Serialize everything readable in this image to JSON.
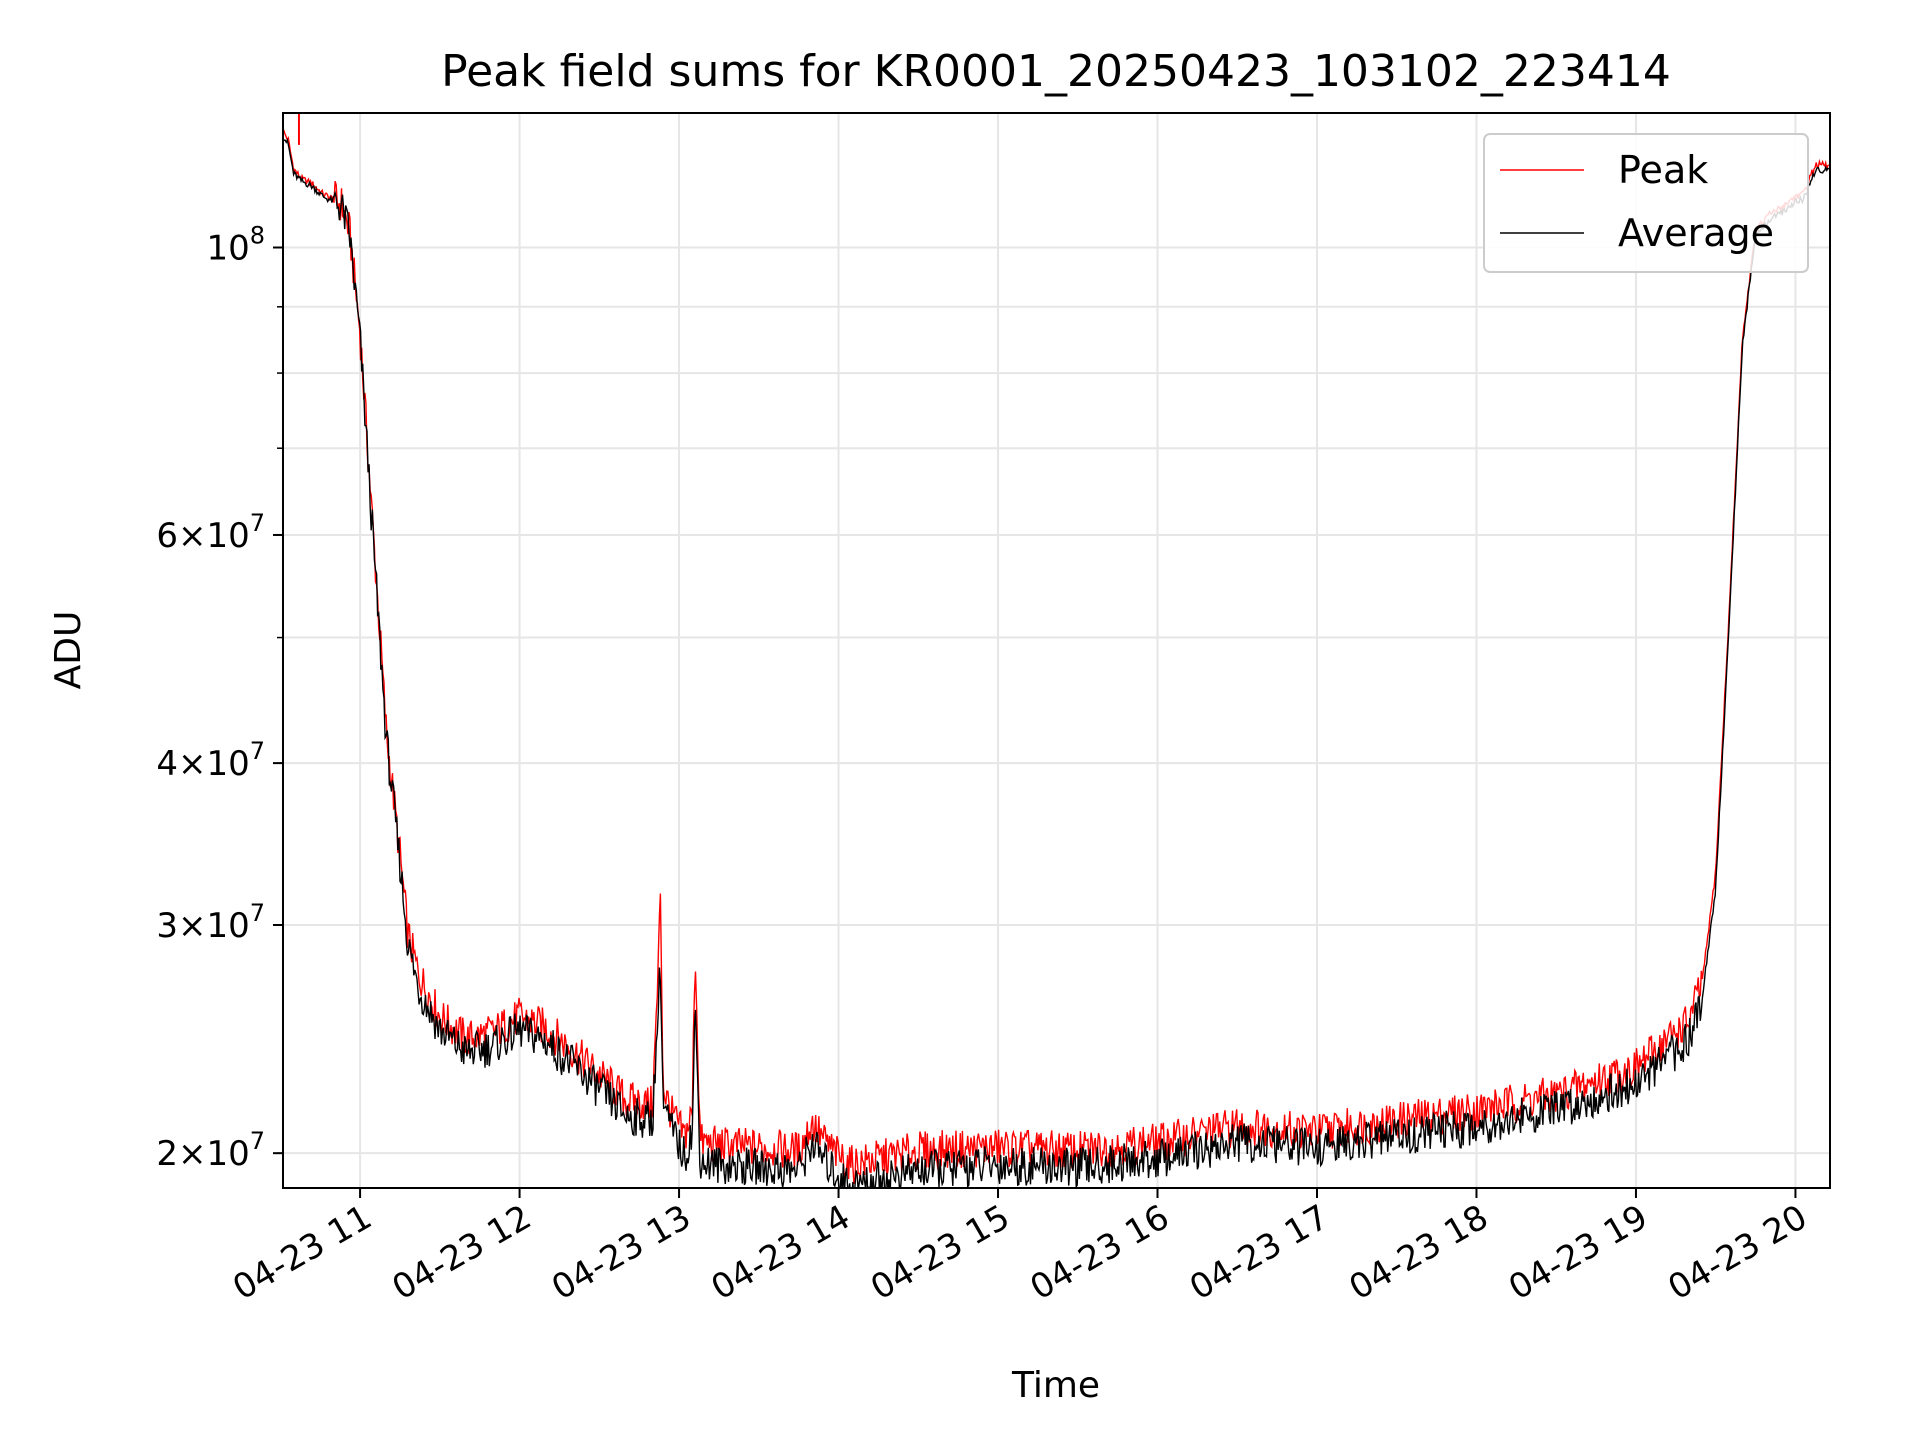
{
  "chart_data": {
    "type": "line",
    "title": "Peak field sums for KR0001_20250423_103102_223414",
    "xlabel": "Time",
    "ylabel": "ADU",
    "y_scale": "log",
    "ylim": [
      18800000,
      127000000
    ],
    "xlim": [
      "04-23 10:31",
      "04-23 20:13"
    ],
    "grid": true,
    "legend_position": "top-right",
    "x_ticks": [
      "04-23 11",
      "04-23 12",
      "04-23 13",
      "04-23 14",
      "04-23 15",
      "04-23 16",
      "04-23 17",
      "04-23 18",
      "04-23 19",
      "04-23 20"
    ],
    "y_ticks": [
      {
        "value": 20000000,
        "mantissa": "2",
        "exp": "7"
      },
      {
        "value": 30000000,
        "mantissa": "3",
        "exp": "7"
      },
      {
        "value": 40000000,
        "mantissa": "4",
        "exp": "7"
      },
      {
        "value": 60000000,
        "mantissa": "6",
        "exp": "7"
      },
      {
        "value": 100000000,
        "mantissa": "",
        "exp": "8"
      }
    ],
    "series": [
      {
        "name": "Peak",
        "color": "#ff0000",
        "x": [
          "04-23 10:31",
          "04-23 10:33",
          "04-23 10:35",
          "04-23 10:38",
          "04-23 10:42",
          "04-23 10:46",
          "04-23 10:50",
          "04-23 10:53",
          "04-23 10:56",
          "04-23 11:00",
          "04-23 11:05",
          "04-23 11:10",
          "04-23 11:15",
          "04-23 11:18",
          "04-23 11:22",
          "04-23 11:30",
          "04-23 11:40",
          "04-23 11:50",
          "04-23 12:00",
          "04-23 12:10",
          "04-23 12:20",
          "04-23 12:30",
          "04-23 12:40",
          "04-23 12:50",
          "04-23 12:52",
          "04-23 12:53",
          "04-23 12:54",
          "04-23 12:57",
          "04-23 13:02",
          "04-23 13:05",
          "04-23 13:06",
          "04-23 13:08",
          "04-23 13:15",
          "04-23 13:30",
          "04-23 13:45",
          "04-23 13:50",
          "04-23 13:55",
          "04-23 14:00",
          "04-23 14:05",
          "04-23 14:15",
          "04-23 14:30",
          "04-23 15:00",
          "04-23 15:30",
          "04-23 16:00",
          "04-23 16:30",
          "04-23 17:00",
          "04-23 17:30",
          "04-23 18:00",
          "04-23 18:30",
          "04-23 19:00",
          "04-23 19:10",
          "04-23 19:20",
          "04-23 19:25",
          "04-23 19:30",
          "04-23 19:35",
          "04-23 19:40",
          "04-23 19:45",
          "04-23 19:50",
          "04-23 19:55",
          "04-23 20:00",
          "04-23 20:03",
          "04-23 20:06",
          "04-23 20:08",
          "04-23 20:13"
        ],
        "values": [
          123000000,
          121000000,
          115000000,
          113000000,
          112000000,
          110000000,
          109000000,
          108000000,
          103000000,
          86000000,
          60000000,
          42000000,
          34000000,
          29500000,
          27500000,
          25500000,
          24500000,
          24800000,
          25500000,
          25000000,
          24000000,
          23000000,
          22000000,
          21800000,
          27000000,
          32000000,
          22500000,
          21500000,
          20600000,
          21500000,
          29000000,
          20400000,
          20300000,
          20200000,
          20100000,
          21100000,
          20400000,
          19900000,
          19600000,
          19800000,
          20100000,
          20200000,
          20100000,
          20400000,
          21000000,
          20800000,
          21200000,
          21600000,
          22200000,
          23300000,
          24300000,
          25300000,
          27200000,
          33000000,
          52000000,
          85000000,
          103000000,
          106000000,
          107500000,
          109500000,
          110000000,
          114000000,
          116000000,
          115500000
        ]
      },
      {
        "name": "Average",
        "color": "#000000",
        "x": [
          "04-23 10:31",
          "04-23 10:33",
          "04-23 10:35",
          "04-23 10:38",
          "04-23 10:42",
          "04-23 10:46",
          "04-23 10:50",
          "04-23 10:53",
          "04-23 10:56",
          "04-23 11:00",
          "04-23 11:05",
          "04-23 11:10",
          "04-23 11:15",
          "04-23 11:18",
          "04-23 11:22",
          "04-23 11:30",
          "04-23 11:40",
          "04-23 11:50",
          "04-23 12:00",
          "04-23 12:10",
          "04-23 12:20",
          "04-23 12:30",
          "04-23 12:40",
          "04-23 12:50",
          "04-23 12:52",
          "04-23 12:53",
          "04-23 12:54",
          "04-23 12:57",
          "04-23 13:02",
          "04-23 13:05",
          "04-23 13:06",
          "04-23 13:08",
          "04-23 13:15",
          "04-23 13:30",
          "04-23 13:45",
          "04-23 13:50",
          "04-23 13:55",
          "04-23 14:00",
          "04-23 14:05",
          "04-23 14:15",
          "04-23 14:30",
          "04-23 15:00",
          "04-23 15:30",
          "04-23 16:00",
          "04-23 16:30",
          "04-23 17:00",
          "04-23 17:30",
          "04-23 18:00",
          "04-23 18:30",
          "04-23 19:00",
          "04-23 19:10",
          "04-23 19:20",
          "04-23 19:25",
          "04-23 19:30",
          "04-23 19:35",
          "04-23 19:40",
          "04-23 19:45",
          "04-23 19:50",
          "04-23 19:55",
          "04-23 20:00",
          "04-23 20:03",
          "04-23 20:06",
          "04-23 20:08",
          "04-23 20:13"
        ],
        "values": [
          122000000,
          120000000,
          114000000,
          112500000,
          111500000,
          109500000,
          108500000,
          107500000,
          102500000,
          85000000,
          59000000,
          41500000,
          33500000,
          29000000,
          26800000,
          24900000,
          23900000,
          24200000,
          24900000,
          24400000,
          23400000,
          22400000,
          21400000,
          21200000,
          25500000,
          28000000,
          21800000,
          20900000,
          19900000,
          20800000,
          26000000,
          19700000,
          19600000,
          19500000,
          19400000,
          20400000,
          19700000,
          19200000,
          18900000,
          19100000,
          19400000,
          19600000,
          19500000,
          19800000,
          20400000,
          20200000,
          20600000,
          21000000,
          21600000,
          22600000,
          23500000,
          24500000,
          26500000,
          32000000,
          51000000,
          84000000,
          102000000,
          105000000,
          106500000,
          108500000,
          109000000,
          113000000,
          115000000,
          114500000
        ]
      }
    ]
  }
}
